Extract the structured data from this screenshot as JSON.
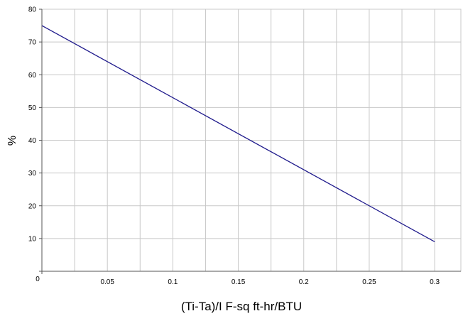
{
  "chart_data": {
    "type": "line",
    "title": "",
    "xlabel": "(Ti-Ta)/I  F-sq ft-hr/BTU",
    "ylabel": "%",
    "xlim": [
      0,
      0.32
    ],
    "ylim": [
      0,
      80
    ],
    "x_ticks": [
      0,
      0.05,
      0.1,
      0.15,
      0.2,
      0.25,
      0.3
    ],
    "x_tick_labels": [
      "0",
      "0.05",
      "0.1",
      "0.15",
      "0.2",
      "0.25",
      "0.3"
    ],
    "y_ticks": [
      10,
      20,
      30,
      40,
      50,
      60,
      70,
      80
    ],
    "y_tick_labels": [
      "10",
      "20",
      "30",
      "40",
      "50",
      "60",
      "70",
      "80"
    ],
    "x_minor_gridlines": [
      0.025,
      0.075,
      0.125,
      0.175,
      0.225,
      0.275
    ],
    "grid": true,
    "legend": "none",
    "colors": {
      "line": "#1f1a8c",
      "grid": "#c8c8c8",
      "axis": "#555555"
    },
    "series": [
      {
        "x": [
          0,
          0.3
        ],
        "y": [
          75,
          9
        ]
      }
    ]
  }
}
